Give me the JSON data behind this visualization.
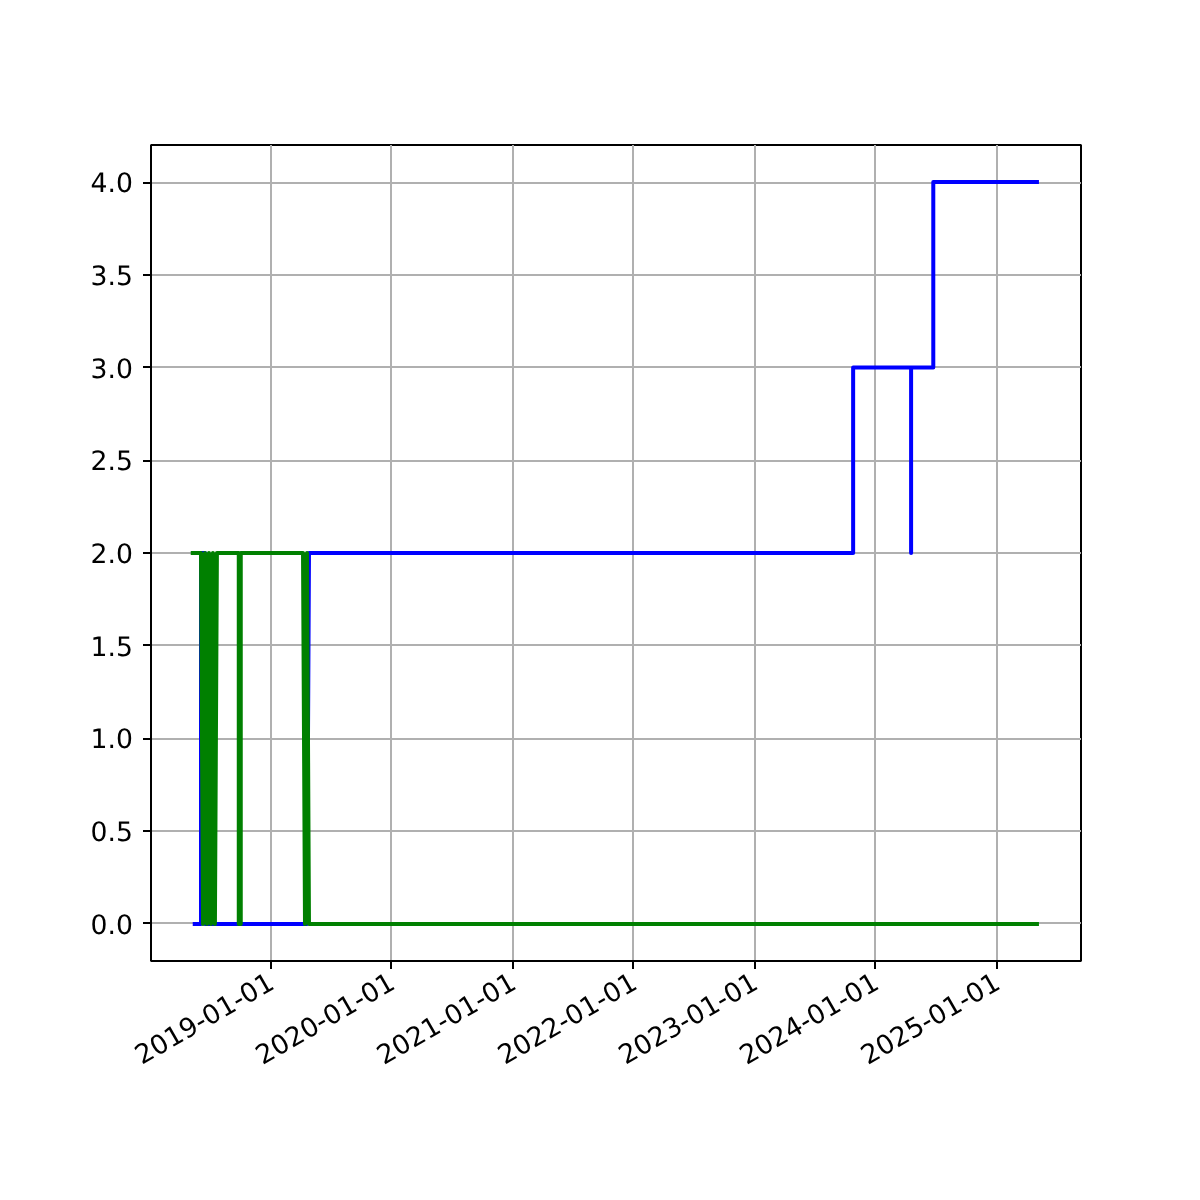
{
  "chart_data": {
    "type": "line",
    "series": [
      {
        "color": "#0000ff",
        "x": [
          "2018-05-10",
          "2018-06-04",
          "2018-06-04",
          "2018-06-16",
          "2018-06-16",
          "2019-04-20",
          "2019-04-26",
          "2023-10-25",
          "2023-10-25",
          "2024-04-17",
          "2024-04-17",
          "2024-04-17",
          "2024-06-23",
          "2024-06-23",
          "2025-05-08"
        ],
        "values": [
          0,
          0,
          2,
          2,
          0,
          0,
          2,
          2,
          3,
          3,
          2,
          3,
          3,
          4,
          4
        ]
      },
      {
        "color": "#008000",
        "x": [
          "2018-05-04",
          "2018-06-04",
          "2018-06-10",
          "2018-06-16",
          "2018-06-22",
          "2018-06-28",
          "2018-07-04",
          "2018-07-10",
          "2018-07-16",
          "2018-07-22",
          "2018-09-26",
          "2018-09-26",
          "2018-10-02",
          "2018-10-02",
          "2019-04-08",
          "2019-04-14",
          "2019-04-20",
          "2019-04-26",
          "2025-05-08"
        ],
        "values": [
          2,
          2,
          0,
          2,
          0,
          2,
          0,
          2,
          0,
          2,
          2,
          0,
          0,
          2,
          2,
          0,
          2,
          0,
          0
        ]
      }
    ],
    "xlim": [
      "2018-01-04",
      "2025-09-12"
    ],
    "xticks": [
      "2019-01-01",
      "2020-01-01",
      "2021-01-01",
      "2022-01-01",
      "2023-01-01",
      "2024-01-01",
      "2025-01-01"
    ],
    "ylim": [
      -0.2,
      4.2
    ],
    "yticks": [
      {
        "value": 0,
        "label": "0.0"
      },
      {
        "value": 0.5,
        "label": "0.5"
      },
      {
        "value": 1,
        "label": "1.0"
      },
      {
        "value": 1.5,
        "label": "1.5"
      },
      {
        "value": 2,
        "label": "2.0"
      },
      {
        "value": 2.5,
        "label": "2.5"
      },
      {
        "value": 3,
        "label": "3.0"
      },
      {
        "value": 3.5,
        "label": "3.5"
      },
      {
        "value": 4,
        "label": "4.0"
      }
    ],
    "grid": true,
    "marker": "none",
    "line_style": "solid"
  }
}
